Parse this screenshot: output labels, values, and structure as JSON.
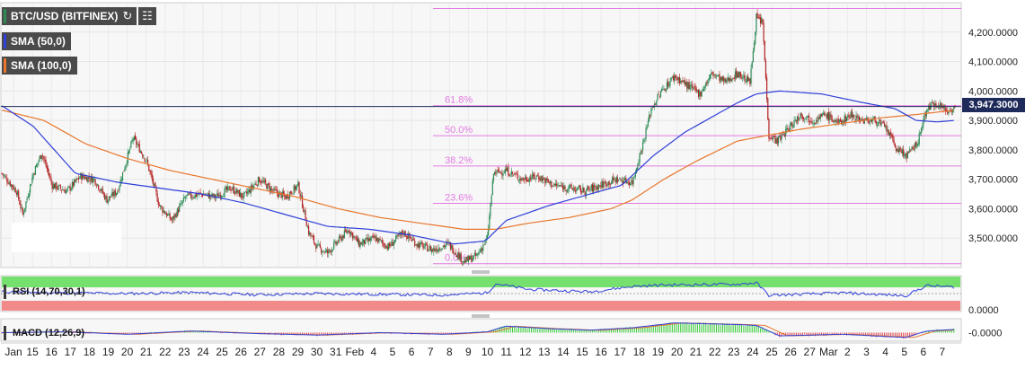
{
  "header": {
    "symbol_label": "BTC/USD (BITFINEX)",
    "reload_icon": "refresh-icon",
    "calendar_icon": "calendar-icon"
  },
  "legend": {
    "sma50": {
      "label": "SMA (50,0)",
      "color": "#2f3fd8"
    },
    "sma100": {
      "label": "SMA (100,0)",
      "color": "#e8762c"
    }
  },
  "last_price": "3,947.3000",
  "colors": {
    "up": "#2e8b57",
    "down": "#b22222",
    "fib": "#e27be2",
    "price_line": "#1e2a5a"
  },
  "chart_data": {
    "type": "candlestick",
    "y_range": [
      3400,
      4300
    ],
    "y_ticks": [
      {
        "value": 3500,
        "label": "3,500.0000"
      },
      {
        "value": 3600,
        "label": "3,600.0000"
      },
      {
        "value": 3700,
        "label": "3,700.0000"
      },
      {
        "value": 3800,
        "label": "3,800.0000"
      },
      {
        "value": 3900,
        "label": "3,900.0000"
      },
      {
        "value": 4000,
        "label": "4,000.0000"
      },
      {
        "value": 4100,
        "label": "4,100.0000"
      },
      {
        "value": 4200,
        "label": "4,200.0000"
      }
    ],
    "x_ticks": [
      "Jan",
      "15",
      "16",
      "17",
      "18",
      "19",
      "20",
      "21",
      "22",
      "23",
      "24",
      "25",
      "26",
      "27",
      "28",
      "29",
      "30",
      "31",
      "Feb",
      "4",
      "5",
      "6",
      "7",
      "8",
      "9",
      "10",
      "11",
      "12",
      "13",
      "14",
      "15",
      "16",
      "17",
      "18",
      "19",
      "20",
      "21",
      "22",
      "23",
      "24",
      "25",
      "26",
      "27",
      "Mar",
      "2",
      "3",
      "4",
      "5",
      "6",
      "7"
    ],
    "current_price": 3947.3,
    "fibonacci": [
      {
        "label": "",
        "value": 4280
      },
      {
        "label": "61.8%",
        "value": 3950
      },
      {
        "label": "50.0%",
        "value": 3848
      },
      {
        "label": "38.2%",
        "value": 3745
      },
      {
        "label": "23.6%",
        "value": 3618
      },
      {
        "label": "0.0%",
        "value": 3413
      }
    ],
    "close_anchors": [
      [
        0,
        3720
      ],
      [
        14,
        3660
      ],
      [
        20,
        3580
      ],
      [
        30,
        3720
      ],
      [
        38,
        3790
      ],
      [
        48,
        3680
      ],
      [
        62,
        3660
      ],
      [
        75,
        3710
      ],
      [
        88,
        3700
      ],
      [
        100,
        3630
      ],
      [
        110,
        3660
      ],
      [
        125,
        3840
      ],
      [
        138,
        3760
      ],
      [
        150,
        3610
      ],
      [
        162,
        3560
      ],
      [
        175,
        3640
      ],
      [
        190,
        3650
      ],
      [
        203,
        3640
      ],
      [
        218,
        3670
      ],
      [
        230,
        3640
      ],
      [
        245,
        3700
      ],
      [
        258,
        3660
      ],
      [
        270,
        3640
      ],
      [
        282,
        3680
      ],
      [
        292,
        3520
      ],
      [
        300,
        3470
      ],
      [
        310,
        3450
      ],
      [
        320,
        3490
      ],
      [
        330,
        3530
      ],
      [
        340,
        3480
      ],
      [
        355,
        3500
      ],
      [
        368,
        3470
      ],
      [
        382,
        3520
      ],
      [
        395,
        3480
      ],
      [
        410,
        3460
      ],
      [
        425,
        3480
      ],
      [
        440,
        3420
      ],
      [
        452,
        3440
      ],
      [
        462,
        3500
      ],
      [
        468,
        3720
      ],
      [
        480,
        3730
      ],
      [
        495,
        3700
      ],
      [
        510,
        3710
      ],
      [
        525,
        3680
      ],
      [
        540,
        3670
      ],
      [
        555,
        3660
      ],
      [
        570,
        3680
      ],
      [
        585,
        3700
      ],
      [
        600,
        3690
      ],
      [
        610,
        3820
      ],
      [
        618,
        3940
      ],
      [
        628,
        4000
      ],
      [
        640,
        4050
      ],
      [
        652,
        4020
      ],
      [
        664,
        3990
      ],
      [
        676,
        4060
      ],
      [
        688,
        4030
      ],
      [
        700,
        4060
      ],
      [
        712,
        4030
      ],
      [
        718,
        4250
      ],
      [
        724,
        4230
      ],
      [
        730,
        3850
      ],
      [
        738,
        3830
      ],
      [
        748,
        3870
      ],
      [
        760,
        3920
      ],
      [
        772,
        3900
      ],
      [
        784,
        3920
      ],
      [
        796,
        3890
      ],
      [
        808,
        3920
      ],
      [
        820,
        3900
      ],
      [
        832,
        3900
      ],
      [
        842,
        3870
      ],
      [
        852,
        3800
      ],
      [
        862,
        3780
      ],
      [
        872,
        3830
      ],
      [
        880,
        3940
      ],
      [
        890,
        3960
      ],
      [
        900,
        3930
      ],
      [
        907,
        3947.3
      ]
    ],
    "sma50": [
      [
        0,
        3950
      ],
      [
        30,
        3880
      ],
      [
        70,
        3720
      ],
      [
        110,
        3690
      ],
      [
        150,
        3670
      ],
      [
        190,
        3650
      ],
      [
        230,
        3620
      ],
      [
        270,
        3580
      ],
      [
        310,
        3540
      ],
      [
        350,
        3530
      ],
      [
        390,
        3510
      ],
      [
        430,
        3480
      ],
      [
        460,
        3490
      ],
      [
        480,
        3560
      ],
      [
        520,
        3610
      ],
      [
        560,
        3650
      ],
      [
        590,
        3680
      ],
      [
        620,
        3780
      ],
      [
        650,
        3860
      ],
      [
        680,
        3920
      ],
      [
        700,
        3960
      ],
      [
        718,
        3990
      ],
      [
        740,
        4000
      ],
      [
        780,
        3990
      ],
      [
        820,
        3960
      ],
      [
        850,
        3940
      ],
      [
        870,
        3900
      ],
      [
        890,
        3895
      ],
      [
        907,
        3900
      ]
    ],
    "sma100": [
      [
        0,
        3935
      ],
      [
        40,
        3900
      ],
      [
        80,
        3820
      ],
      [
        120,
        3770
      ],
      [
        160,
        3730
      ],
      [
        200,
        3700
      ],
      [
        240,
        3670
      ],
      [
        280,
        3640
      ],
      [
        320,
        3600
      ],
      [
        360,
        3570
      ],
      [
        400,
        3550
      ],
      [
        440,
        3530
      ],
      [
        470,
        3530
      ],
      [
        500,
        3550
      ],
      [
        540,
        3570
      ],
      [
        580,
        3600
      ],
      [
        600,
        3630
      ],
      [
        630,
        3700
      ],
      [
        660,
        3760
      ],
      [
        700,
        3830
      ],
      [
        730,
        3850
      ],
      [
        760,
        3870
      ],
      [
        800,
        3890
      ],
      [
        840,
        3910
      ],
      [
        870,
        3920
      ],
      [
        907,
        3935
      ]
    ],
    "rsi": {
      "label": "RSI (14,70,30,1)",
      "upper_band": 70,
      "lower_band": 30,
      "anchors": [
        [
          0,
          55
        ],
        [
          60,
          52
        ],
        [
          120,
          50
        ],
        [
          180,
          53
        ],
        [
          240,
          47
        ],
        [
          300,
          50
        ],
        [
          360,
          48
        ],
        [
          420,
          46
        ],
        [
          462,
          52
        ],
        [
          470,
          78
        ],
        [
          500,
          62
        ],
        [
          560,
          55
        ],
        [
          600,
          70
        ],
        [
          630,
          74
        ],
        [
          700,
          76
        ],
        [
          718,
          80
        ],
        [
          730,
          45
        ],
        [
          800,
          52
        ],
        [
          860,
          44
        ],
        [
          880,
          72
        ],
        [
          907,
          68
        ]
      ],
      "tick_label": "0.0000"
    },
    "macd": {
      "label": "MACD (12,26,9)",
      "anchors": [
        [
          0,
          0
        ],
        [
          60,
          1
        ],
        [
          120,
          -2
        ],
        [
          180,
          2
        ],
        [
          240,
          -1
        ],
        [
          300,
          -3
        ],
        [
          360,
          0
        ],
        [
          420,
          -2
        ],
        [
          462,
          1
        ],
        [
          480,
          8
        ],
        [
          520,
          5
        ],
        [
          560,
          3
        ],
        [
          600,
          6
        ],
        [
          640,
          12
        ],
        [
          700,
          10
        ],
        [
          718,
          9
        ],
        [
          740,
          -4
        ],
        [
          800,
          -2
        ],
        [
          860,
          -6
        ],
        [
          880,
          2
        ],
        [
          907,
          4
        ]
      ],
      "tick_label": "-0.0000"
    }
  }
}
